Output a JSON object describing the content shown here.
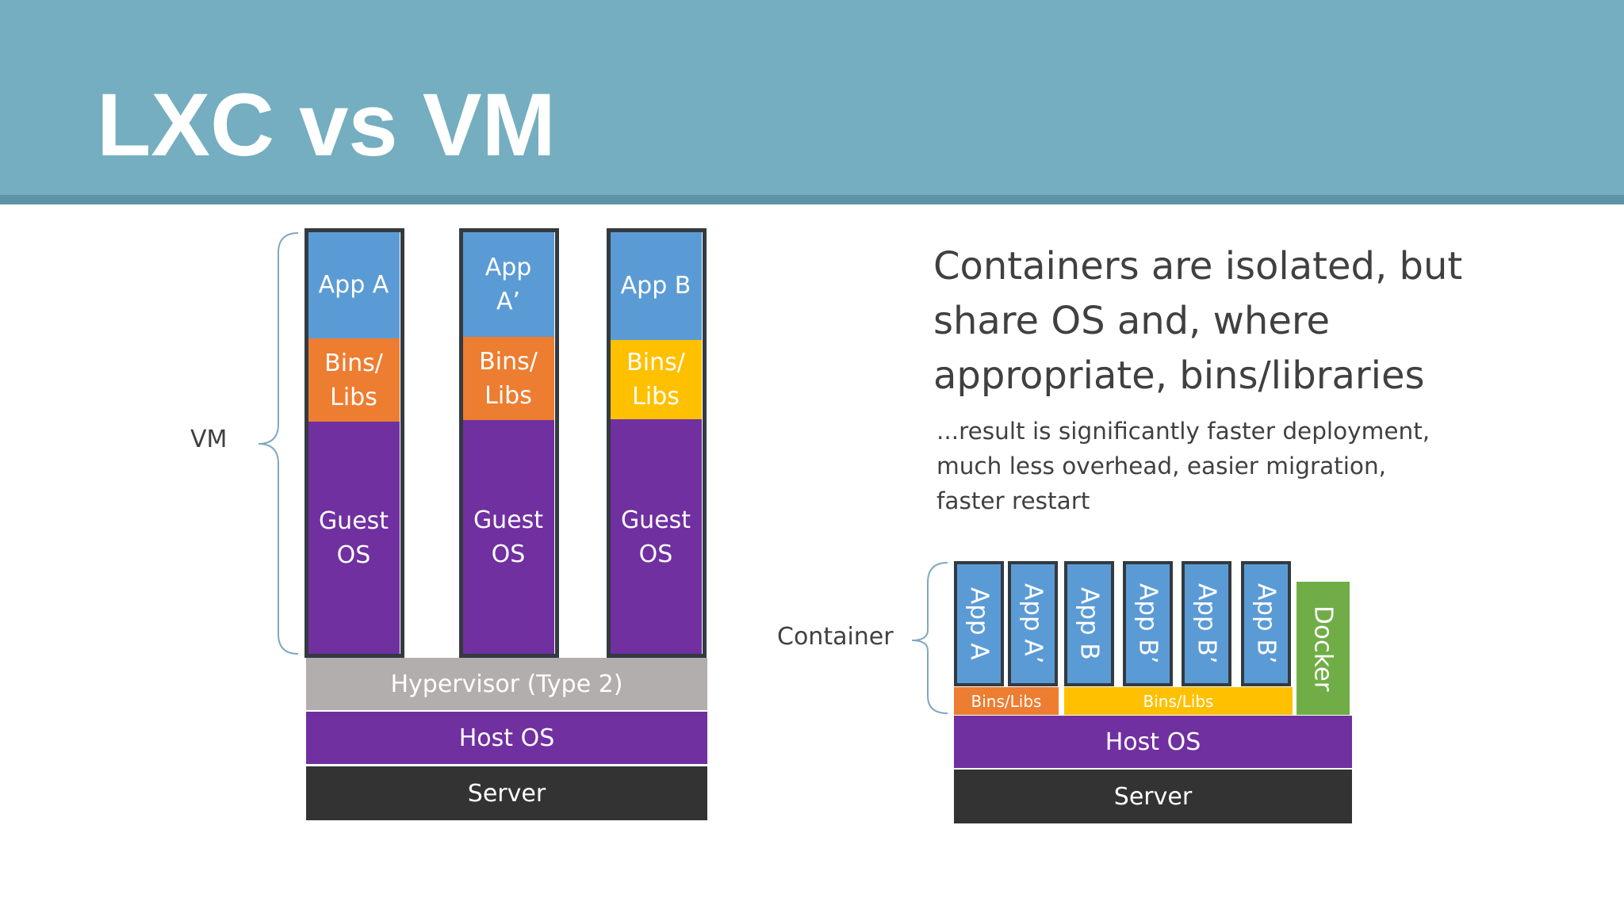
{
  "slide": {
    "title": "LXC vs VM",
    "heading": "Containers are isolated, but share OS and, where appropriate, bins/libraries",
    "subtext": "...result is significantly faster deployment, much less overhead, easier migration, faster restart"
  },
  "vm_diagram": {
    "side_label": "VM",
    "stacks": [
      {
        "app": "App A",
        "bins": "Bins/ Libs",
        "guest": "Guest OS"
      },
      {
        "app": "App A’",
        "bins": "Bins/ Libs",
        "guest": "Guest OS"
      },
      {
        "app": "App B",
        "bins": "Bins/ Libs",
        "guest": "Guest OS"
      }
    ],
    "hypervisor": "Hypervisor (Type 2)",
    "host_os": "Host OS",
    "server": "Server"
  },
  "container_diagram": {
    "side_label": "Container",
    "apps": [
      "App A",
      "App A’",
      "App B",
      "App B’",
      "App B’",
      "App B’"
    ],
    "bins_a": "Bins/Libs",
    "bins_b": "Bins/Libs",
    "docker": "Docker",
    "host_os": "Host OS",
    "server": "Server"
  },
  "colors": {
    "header": "#74aec0",
    "app": "#5b9bd5",
    "bins_orange": "#ed7d31",
    "bins_yellow": "#ffc000",
    "os_purple": "#7030a0",
    "hypervisor": "#b3aeae",
    "server": "#333333",
    "docker": "#70ad47"
  }
}
